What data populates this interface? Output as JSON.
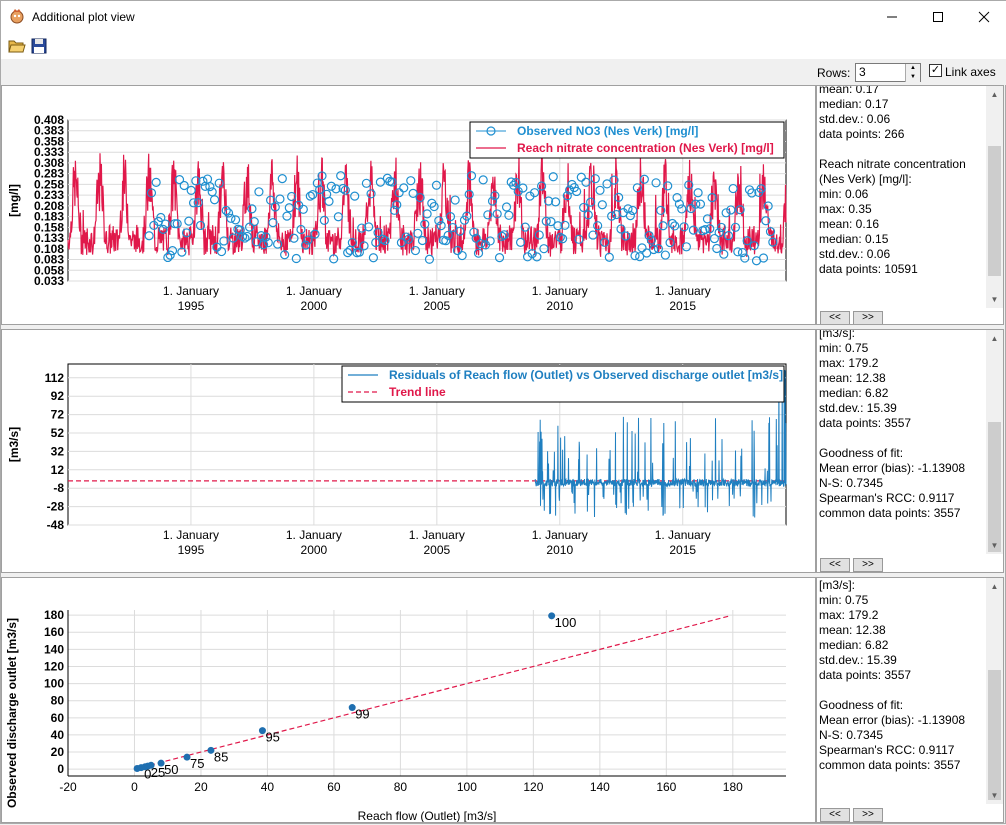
{
  "window": {
    "title": "Additional plot view",
    "controls": [
      "minimize",
      "maximize",
      "close"
    ]
  },
  "toolbar": {
    "buttons": [
      {
        "icon": "open-folder-icon"
      },
      {
        "icon": "save-icon"
      }
    ]
  },
  "rows_control": {
    "label": "Rows:",
    "value": "3",
    "link_axes_label": "Link axes",
    "link_axes_checked": true
  },
  "plots": [
    {
      "chart_data": {
        "type": "line",
        "ylabel": "[mg/l]",
        "yticks": [
          "0.408",
          "0.383",
          "0.358",
          "0.333",
          "0.308",
          "0.283",
          "0.258",
          "0.233",
          "0.208",
          "0.183",
          "0.158",
          "0.133",
          "0.108",
          "0.083",
          "0.058",
          "0.033"
        ],
        "ylim": [
          0.033,
          0.408
        ],
        "xticks": [
          {
            "day": "1. January",
            "year": "1995"
          },
          {
            "day": "1. January",
            "year": "2000"
          },
          {
            "day": "1. January",
            "year": "2005"
          },
          {
            "day": "1. January",
            "year": "2010"
          },
          {
            "day": "1. January",
            "year": "2015"
          }
        ],
        "xlim": [
          1990.0,
          2019.2
        ],
        "grid": true,
        "legend_position": "top-right",
        "series": [
          {
            "name": "Observed NO3 (Nes Verk) [mg/l]",
            "style": "circles",
            "color": "#1f8fd0"
          },
          {
            "name": "Reach nitrate concentration (Nes Verk) [mg/l]",
            "style": "line",
            "color": "#e0184a",
            "approx_min": 0.06,
            "approx_max": 0.35
          }
        ]
      },
      "stats_text": "mean: 0.17\nmedian: 0.17\nstd.dev.: 0.06\ndata points: 266\n\nReach nitrate concentration\n(Nes Verk) [mg/l]:\nmin: 0.06\nmax: 0.35\nmean: 0.16\nmedian: 0.15\nstd.dev.: 0.06\ndata points: 10591"
    },
    {
      "chart_data": {
        "type": "line",
        "ylabel": "[m3/s]",
        "yticks": [
          "112",
          "92",
          "72",
          "52",
          "32",
          "12",
          "-8",
          "-28",
          "-48"
        ],
        "ylim": [
          -48,
          127
        ],
        "xticks": [
          {
            "day": "1. January",
            "year": "1995"
          },
          {
            "day": "1. January",
            "year": "2000"
          },
          {
            "day": "1. January",
            "year": "2005"
          },
          {
            "day": "1. January",
            "year": "2010"
          },
          {
            "day": "1. January",
            "year": "2015"
          }
        ],
        "xlim": [
          1990.0,
          2019.2
        ],
        "grid": true,
        "legend_position": "top-right",
        "series": [
          {
            "name": "Residuals of Reach flow (Outlet) vs Observed discharge outlet [m3/s]",
            "style": "line",
            "color": "#1f7fc0",
            "start_x": 2009.0
          },
          {
            "name": "Trend line",
            "style": "dashed",
            "color": "#e0184a",
            "value": 0
          }
        ]
      },
      "stats_text": "[m3/s]:\nmin: 0.75\nmax: 179.2\nmean: 12.38\nmedian: 6.82\nstd.dev.: 15.39\ndata points: 3557\n\nGoodness of fit:\nMean error (bias): -1.13908\nN-S: 0.7345\nSpearman's RCC: 0.9117\ncommon data points: 3557"
    },
    {
      "chart_data": {
        "type": "scatter",
        "xlabel": "Reach flow (Outlet) [m3/s]",
        "ylabel": "Observed discharge outlet [m3/s]",
        "xticks": [
          "-20",
          "0",
          "20",
          "40",
          "60",
          "80",
          "100",
          "120",
          "140",
          "160",
          "180"
        ],
        "yticks": [
          "180",
          "160",
          "140",
          "120",
          "100",
          "80",
          "60",
          "40",
          "20",
          "0"
        ],
        "xlim": [
          -20,
          196
        ],
        "ylim": [
          -8,
          186
        ],
        "grid": true,
        "points": [
          {
            "x": 0.8,
            "y": 0.8,
            "label": ""
          },
          {
            "x": 2.0,
            "y": 1.8,
            "label": "0"
          },
          {
            "x": 3.2,
            "y": 2.8,
            "label": ""
          },
          {
            "x": 4.0,
            "y": 3.5,
            "label": "25"
          },
          {
            "x": 5.0,
            "y": 4.5,
            "label": ""
          },
          {
            "x": 8.0,
            "y": 7.0,
            "label": "50"
          },
          {
            "x": 15.8,
            "y": 14.0,
            "label": "75"
          },
          {
            "x": 23.0,
            "y": 22.0,
            "label": "85"
          },
          {
            "x": 38.5,
            "y": 45.0,
            "label": "95"
          },
          {
            "x": 65.5,
            "y": 72.0,
            "label": "99"
          },
          {
            "x": 125.5,
            "y": 179.2,
            "label": "100"
          }
        ],
        "trend_line": {
          "x": [
            0,
            179.2
          ],
          "y": [
            0,
            179.2
          ],
          "style": "dashed",
          "color": "#e0184a"
        },
        "point_color": "#1f6fb0"
      },
      "stats_text": "[m3/s]:\nmin: 0.75\nmax: 179.2\nmean: 12.38\nmedian: 6.82\nstd.dev.: 15.39\ndata points: 3557\n\nGoodness of fit:\nMean error (bias): -1.13908\nN-S: 0.7345\nSpearman's RCC: 0.9117\ncommon data points: 3557"
    }
  ],
  "nav": {
    "prev": "<<",
    "next": ">>"
  }
}
